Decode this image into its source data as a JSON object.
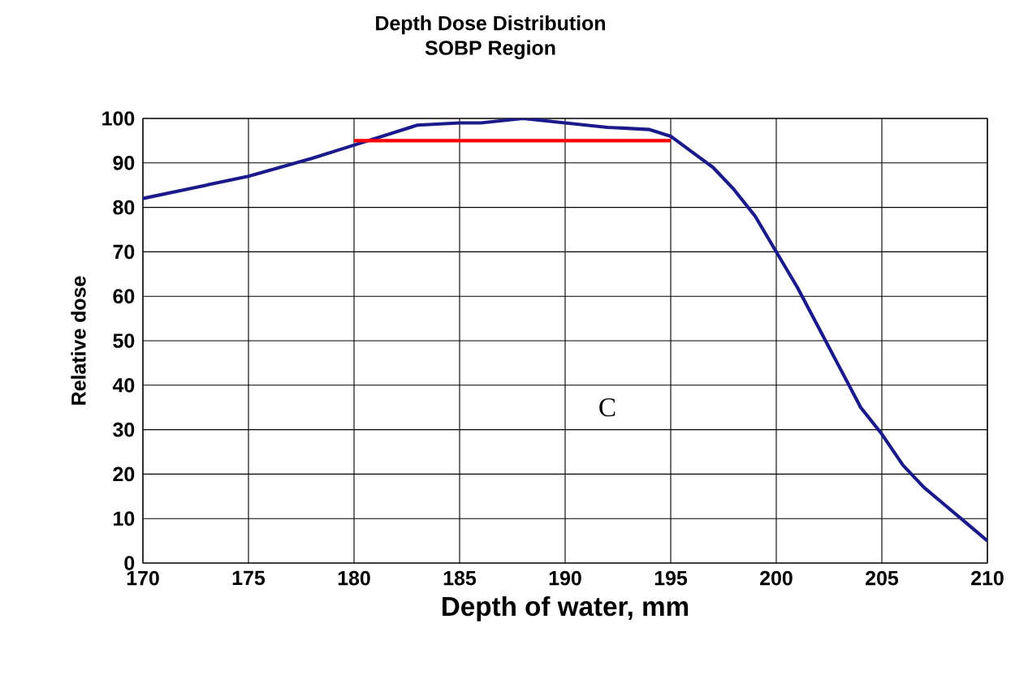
{
  "chart_data": {
    "type": "line",
    "title": "Depth Dose Distribution",
    "subtitle": "SOBP Region",
    "xlabel": "Depth of water, mm",
    "ylabel": "Relative dose",
    "xlim": [
      170,
      210
    ],
    "xticks": [
      170,
      175,
      180,
      185,
      190,
      195,
      200,
      205,
      210
    ],
    "ylim": [
      0,
      100
    ],
    "yticks": [
      0,
      10,
      20,
      30,
      40,
      50,
      60,
      70,
      80,
      90,
      100
    ],
    "grid": true,
    "series": [
      {
        "color": "#1a1a8c",
        "x": [
          170,
          172,
          175,
          178,
          180,
          182,
          183,
          185,
          186,
          187,
          188,
          190,
          192,
          194,
          195,
          196,
          197,
          198,
          199,
          200,
          201,
          202,
          203,
          204,
          205,
          206,
          207,
          208,
          209,
          210
        ],
        "values": [
          82,
          84,
          87,
          91,
          94,
          97,
          98.5,
          99,
          99,
          99.5,
          100,
          99,
          98,
          97.5,
          96,
          92.5,
          89,
          84,
          78,
          70,
          62,
          53,
          44,
          35,
          29,
          22,
          17,
          13,
          9,
          5
        ]
      },
      {
        "color": "#ff0000",
        "x": [
          180,
          195
        ],
        "values": [
          95,
          95
        ]
      }
    ],
    "annotations": [
      "C"
    ]
  }
}
